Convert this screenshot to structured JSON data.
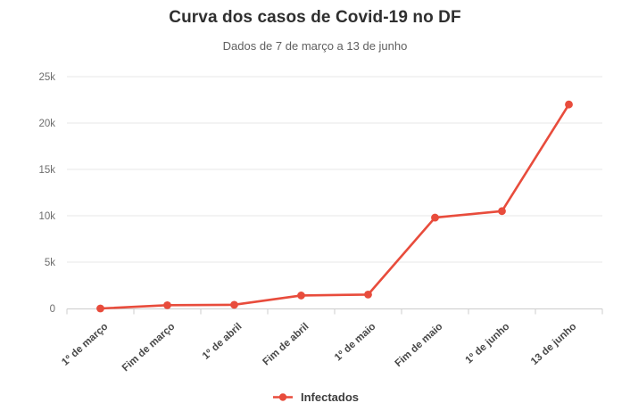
{
  "header": {
    "title": "Curva dos casos de Covid-19 no DF",
    "subtitle": "Dados de 7 de março a 13 de junho"
  },
  "legend": {
    "items": [
      {
        "label": "Infectados",
        "color": "#e84c3c"
      }
    ]
  },
  "colors": {
    "accent": "#e84c3c",
    "grid": "#e7e7e7",
    "axis": "#cccccc",
    "title": "#2f2f2f",
    "subtitle": "#5f5f5f",
    "y_tick_label": "#6e6e6e",
    "x_tick_label": "#484848"
  },
  "chart_data": {
    "type": "line",
    "title": "Curva dos casos de Covid-19 no DF",
    "subtitle": "Dados de 7 de março a 13 de junho",
    "categories": [
      "1º de março",
      "Fim de março",
      "1º de abril",
      "Fim de abril",
      "1º de maio",
      "Fim de maio",
      "1º de junho",
      "13 de junho"
    ],
    "series": [
      {
        "name": "Infectados",
        "color": "#e84c3c",
        "values": [
          1,
          350,
          400,
          1400,
          1500,
          9800,
          10500,
          22000
        ]
      }
    ],
    "ylim": [
      0,
      25000
    ],
    "yticks": [
      {
        "value": 0,
        "label": "0"
      },
      {
        "value": 5000,
        "label": "5k"
      },
      {
        "value": 10000,
        "label": "10k"
      },
      {
        "value": 15000,
        "label": "15k"
      },
      {
        "value": 20000,
        "label": "20k"
      },
      {
        "value": 25000,
        "label": "25k"
      }
    ],
    "grid": "horizontal",
    "legend_position": "bottom",
    "x_label_rotation": -42
  }
}
